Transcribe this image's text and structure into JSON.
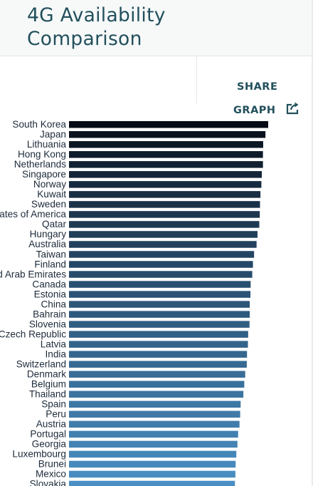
{
  "header": {
    "title_line1": "4G Availability",
    "title_line2": "Comparison"
  },
  "share": {
    "label_line1": "SHARE",
    "label_line2": "GRAPH",
    "icon": "share-export-icon"
  },
  "chart_data": {
    "type": "bar",
    "orientation": "horizontal",
    "title": "4G Availability Comparison",
    "categories": [
      "South Korea",
      "Japan",
      "Lithuania",
      "Hong Kong",
      "Netherlands",
      "Singapore",
      "Norway",
      "Kuwait",
      "Sweden",
      "United States of America",
      "Qatar",
      "Hungary",
      "Australia",
      "Taiwan",
      "Finland",
      "United Arab Emirates",
      "Canada",
      "Estonia",
      "China",
      "Bahrain",
      "Slovenia",
      "Czech Republic",
      "Latvia",
      "India",
      "Switzerland",
      "Denmark",
      "Belgium",
      "Thailand",
      "Spain",
      "Peru",
      "Austria",
      "Portugal",
      "Georgia",
      "Luxembourg",
      "Brunei",
      "Mexico",
      "Slovakia"
    ],
    "values": [
      97.5,
      96.3,
      95.3,
      95.2,
      95.2,
      94.7,
      94.5,
      94.1,
      93.9,
      93.8,
      93.6,
      92.8,
      92.4,
      91.3,
      90.8,
      90.5,
      89.8,
      89.7,
      89.4,
      89.4,
      89.3,
      88.7,
      88.6,
      88.2,
      88.1,
      87.4,
      87.0,
      86.6,
      85.4,
      85.2,
      84.9,
      84.3,
      84.0,
      83.5,
      83.2,
      83.1,
      82.9
    ],
    "colors": {
      "start": "#050a14",
      "end": "#4a8fc4"
    },
    "xlim": [
      0,
      100
    ],
    "grid": false,
    "legend": "none"
  }
}
